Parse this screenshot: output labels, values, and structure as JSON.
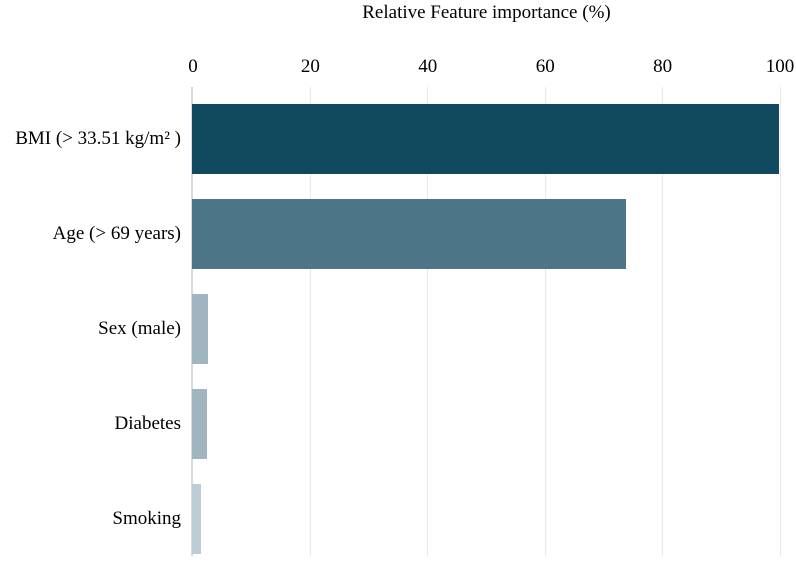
{
  "chart_data": {
    "type": "bar",
    "orientation": "horizontal",
    "title": "Relative Feature importance (%)",
    "categories": [
      "BMI (> 33.51 kg/m² )",
      "Age (> 69 years)",
      "Sex (male)",
      "Diabetes",
      "Smoking"
    ],
    "values": [
      100,
      74,
      2.7,
      2.5,
      1.6
    ],
    "xlabel": "Relative Feature importance (%)",
    "ylabel": "",
    "xlim": [
      0,
      100
    ],
    "x_ticks": [
      0,
      20,
      40,
      60,
      80,
      100
    ],
    "axis_position": "top",
    "grid": true,
    "legend": false,
    "bar_colors": [
      "#11495f",
      "#4c7688",
      "#a1b5c1",
      "#a1b5c1",
      "#bdccd5"
    ],
    "gridline_color": "#e8e8e8",
    "axis_line_color": "#d9d9d9",
    "text_color": "#000000",
    "background_color": "#ffffff"
  }
}
